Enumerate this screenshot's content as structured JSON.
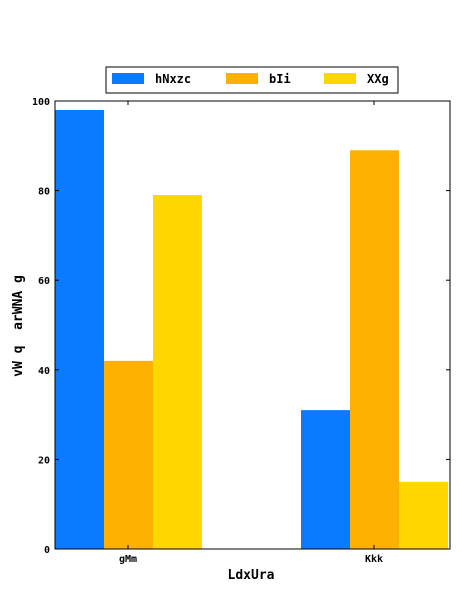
{
  "chart_data": {
    "type": "bar",
    "categories": [
      "gMm",
      "Kkk"
    ],
    "series": [
      {
        "name": "hNxzc",
        "color": "#0a7bff",
        "values": [
          98,
          31
        ]
      },
      {
        "name": "bIi",
        "color": "#ffb000",
        "values": [
          42,
          89
        ]
      },
      {
        "name": "XXg",
        "color": "#ffd700",
        "values": [
          79,
          15
        ]
      }
    ],
    "xlabel": "LdxUra",
    "ylabel": "vW q  arWNA g",
    "ylim": [
      0,
      100
    ],
    "yticks": [
      0,
      20,
      40,
      60,
      80,
      100
    ],
    "legend": "top",
    "grid": false
  }
}
